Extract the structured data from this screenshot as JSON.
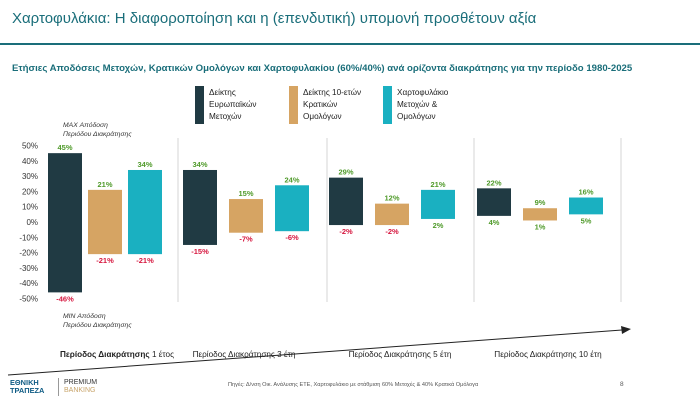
{
  "header": {
    "title": "Χαρτοφυλάκια: Η διαφοροποίηση και η (επενδυτική) υπομονή προσθέτουν αξία",
    "subtitle": "Ετήσιες Αποδόσεις Μετοχών, Κρατικών Ομολόγων και Χαρτοφυλακίου (60%/40%) ανά ορίζοντα διακράτησης για την περίοδο 1980-2025"
  },
  "chart_data": {
    "type": "floating-bar",
    "title": "Ετήσιες Αποδόσεις Μετοχών, Κρατικών Ομολόγων και Χαρτοφυλακίου (60%/40%) ανά ορίζοντα διακράτησης για την περίοδο 1980-2025",
    "ylim": [
      -50,
      50
    ],
    "yticks": [
      -50,
      -40,
      -30,
      -20,
      -10,
      0,
      10,
      20,
      30,
      40,
      50
    ],
    "ytick_labels": [
      "-50%",
      "-40%",
      "-30%",
      "-20%",
      "-10%",
      "0%",
      "10%",
      "20%",
      "30%",
      "40%",
      "50%"
    ],
    "annotation_max": [
      "MAX Απόδοση",
      "Περιόδου Διακράτησης"
    ],
    "annotation_min": [
      "MIN Απόδοση",
      "Περιόδου Διακράτησης"
    ],
    "series": [
      {
        "name": "Δείκτης Ευρωπαϊκών Μετοχών",
        "legend_lines": [
          "Δείκτης",
          "Ευρωπαϊκών",
          "Μετοχών"
        ],
        "color": "#203a43"
      },
      {
        "name": "Δείκτης 10-ετών Κρατικών Ομολόγων",
        "legend_lines": [
          "Δείκτης 10-ετών",
          "Κρατικών",
          "Ομολόγων"
        ],
        "color": "#d6a463"
      },
      {
        "name": "Χαρτοφυλάκιο Μετοχών & Ομολόγων",
        "legend_lines": [
          "Χαρτοφυλάκιο",
          "Μετοχών &",
          "Ομολόγων"
        ],
        "color": "#1ab0c1"
      }
    ],
    "groups": [
      {
        "label_prefix": "Περίοδος Διακράτησης",
        "label_suffix": "1 έτος",
        "bold_prefix": true,
        "bars": [
          {
            "max": 45,
            "min": -46,
            "max_label": "45%",
            "min_label": "-46%"
          },
          {
            "max": 21,
            "min": -21,
            "max_label": "21%",
            "min_label": "-21%"
          },
          {
            "max": 34,
            "min": -21,
            "max_label": "34%",
            "min_label": "-21%"
          }
        ]
      },
      {
        "label_prefix": "Περίοδος Διακράτησης",
        "label_suffix": "3 έτη",
        "bold_prefix": false,
        "bars": [
          {
            "max": 34,
            "min": -15,
            "max_label": "34%",
            "min_label": "-15%"
          },
          {
            "max": 15,
            "min": -7,
            "max_label": "15%",
            "min_label": "-7%"
          },
          {
            "max": 24,
            "min": -6,
            "max_label": "24%",
            "min_label": "-6%"
          }
        ]
      },
      {
        "label_prefix": "Περίοδος Διακράτησης",
        "label_suffix": "5 έτη",
        "bold_prefix": false,
        "bars": [
          {
            "max": 29,
            "min": -2,
            "max_label": "29%",
            "min_label": "-2%"
          },
          {
            "max": 12,
            "min": -2,
            "max_label": "12%",
            "min_label": "-2%"
          },
          {
            "max": 21,
            "min": 2,
            "max_label": "21%",
            "min_label": "2%"
          }
        ]
      },
      {
        "label_prefix": "Περίοδος Διακράτησης",
        "label_suffix": "10 έτη",
        "bold_prefix": false,
        "bars": [
          {
            "max": 22,
            "min": 4,
            "max_label": "22%",
            "min_label": "4%"
          },
          {
            "max": 9,
            "min": 1,
            "max_label": "9%",
            "min_label": "1%"
          },
          {
            "max": 16,
            "min": 5,
            "max_label": "16%",
            "min_label": "5%"
          }
        ]
      }
    ]
  },
  "footer": {
    "source": "Πηγές: Δ/νση Οικ. Ανάλυσης ΕΤΕ, Χαρτοφυλάκιο με στάθμιση 60% Μετοχές & 40% Κρατικά Ομόλογα",
    "page_number": "8",
    "logo_bank_line1": "ΕΘΝΙΚΗ",
    "logo_bank_line2": "ΤΡΑΠΕΖΑ",
    "logo_premium_line1": "PREMIUM",
    "logo_premium_line2": "BANKING"
  }
}
